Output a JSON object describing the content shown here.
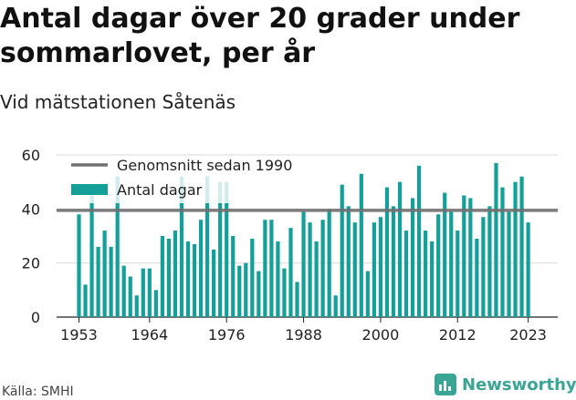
{
  "header": {
    "title": "Antal dagar över 20 grader under sommarlovet, per år",
    "subtitle": "Vid mätstationen Såtenäs"
  },
  "footer": {
    "source": "Källa: SMHI",
    "brand": "Newsworthy",
    "brand_icon": "bar-chart-logo-icon",
    "brand_color": "#3aa594"
  },
  "chart_data": {
    "type": "bar",
    "title": "Antal dagar över 20 grader under sommarlovet, per år",
    "subtitle": "Vid mätstationen Såtenäs",
    "xlabel": "",
    "ylabel": "",
    "ylim": [
      0,
      60
    ],
    "yticks": [
      "0",
      "20",
      "40",
      "60"
    ],
    "xticks": [
      "1953",
      "1964",
      "1976",
      "1988",
      "2000",
      "2012",
      "2023"
    ],
    "grid": true,
    "legend_position": "top-left",
    "bar_color": "#14a099",
    "average_color": "#707070",
    "categories": [
      1953,
      1954,
      1955,
      1956,
      1957,
      1958,
      1959,
      1960,
      1961,
      1962,
      1963,
      1964,
      1965,
      1966,
      1967,
      1968,
      1969,
      1970,
      1971,
      1972,
      1973,
      1974,
      1975,
      1976,
      1977,
      1978,
      1979,
      1980,
      1981,
      1982,
      1983,
      1984,
      1985,
      1986,
      1987,
      1988,
      1989,
      1990,
      1991,
      1992,
      1993,
      1994,
      1995,
      1996,
      1997,
      1998,
      1999,
      2000,
      2001,
      2002,
      2003,
      2004,
      2005,
      2006,
      2007,
      2008,
      2009,
      2010,
      2011,
      2012,
      2013,
      2014,
      2015,
      2016,
      2017,
      2018,
      2019,
      2020,
      2021,
      2022,
      2023
    ],
    "series": [
      {
        "name": "Antal dagar",
        "values": [
          38,
          12,
          45,
          26,
          32,
          26,
          52,
          19,
          15,
          8,
          18,
          18,
          10,
          30,
          29,
          32,
          52,
          28,
          27,
          36,
          52,
          25,
          50,
          50,
          30,
          19,
          20,
          29,
          17,
          36,
          36,
          28,
          18,
          33,
          13,
          39,
          35,
          28,
          36,
          40,
          8,
          49,
          41,
          35,
          53,
          17,
          35,
          37,
          48,
          41,
          50,
          32,
          44,
          56,
          32,
          28,
          38,
          46,
          39,
          32,
          45,
          44,
          29,
          37,
          41,
          57,
          48,
          39,
          50,
          52,
          35
        ]
      },
      {
        "name": "Genomsnitt sedan 1990",
        "value": 39.5
      }
    ]
  }
}
